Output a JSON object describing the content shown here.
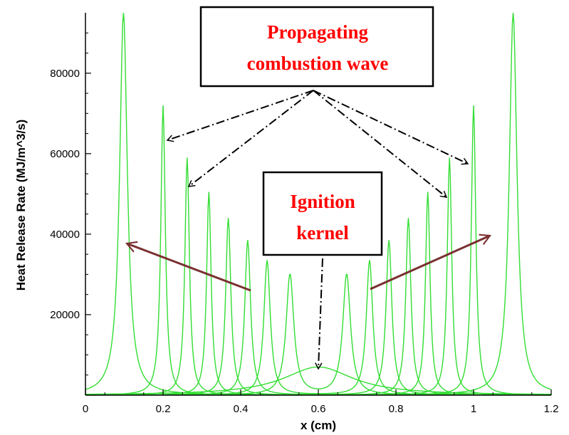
{
  "chart_data": {
    "type": "line",
    "title": "",
    "xlabel": "x (cm)",
    "ylabel": "Heat Release Rate (MJ/m^3/s)",
    "xlim": [
      0,
      1.2
    ],
    "ylim": [
      0,
      95000
    ],
    "x_ticks": [
      "0",
      "0.2",
      "0.4",
      "0.6",
      "0.8",
      "1",
      "1.2"
    ],
    "y_ticks": [
      "20000",
      "40000",
      "60000",
      "80000"
    ],
    "line_color": "#33dd33",
    "grid": false,
    "legend": "none",
    "series": [
      {
        "peaks": [
          {
            "x": 0.6,
            "y": 7000,
            "w": 0.11
          }
        ]
      },
      {
        "peaks": [
          {
            "x": 0.527,
            "y": 30000,
            "w": 0.012
          },
          {
            "x": 0.673,
            "y": 30000,
            "w": 0.012
          }
        ]
      },
      {
        "peaks": [
          {
            "x": 0.468,
            "y": 33500,
            "w": 0.01
          },
          {
            "x": 0.732,
            "y": 33500,
            "w": 0.01
          }
        ]
      },
      {
        "peaks": [
          {
            "x": 0.418,
            "y": 38500,
            "w": 0.009
          },
          {
            "x": 0.782,
            "y": 38500,
            "w": 0.009
          }
        ]
      },
      {
        "peaks": [
          {
            "x": 0.368,
            "y": 44000,
            "w": 0.008
          },
          {
            "x": 0.832,
            "y": 44000,
            "w": 0.008
          }
        ]
      },
      {
        "peaks": [
          {
            "x": 0.318,
            "y": 50500,
            "w": 0.007
          },
          {
            "x": 0.882,
            "y": 50500,
            "w": 0.007
          }
        ]
      },
      {
        "peaks": [
          {
            "x": 0.262,
            "y": 59000,
            "w": 0.007
          },
          {
            "x": 0.938,
            "y": 59000,
            "w": 0.007
          }
        ]
      },
      {
        "peaks": [
          {
            "x": 0.2,
            "y": 72000,
            "w": 0.007
          },
          {
            "x": 1.0,
            "y": 72000,
            "w": 0.007
          }
        ]
      },
      {
        "peaks": [
          {
            "x": 0.098,
            "y": 95000,
            "w": 0.012
          },
          {
            "x": 1.102,
            "y": 95000,
            "w": 0.012
          }
        ]
      }
    ],
    "annotations": [
      {
        "id": "propagating",
        "lines": [
          "Propagating",
          "combustion wave"
        ],
        "color": "#ff0000"
      },
      {
        "id": "ignition",
        "lines": [
          "Ignition",
          "kernel"
        ],
        "color": "#ff0000"
      }
    ],
    "arrow_colors": {
      "dashed": "#000000",
      "solid": "#7a3030"
    }
  }
}
